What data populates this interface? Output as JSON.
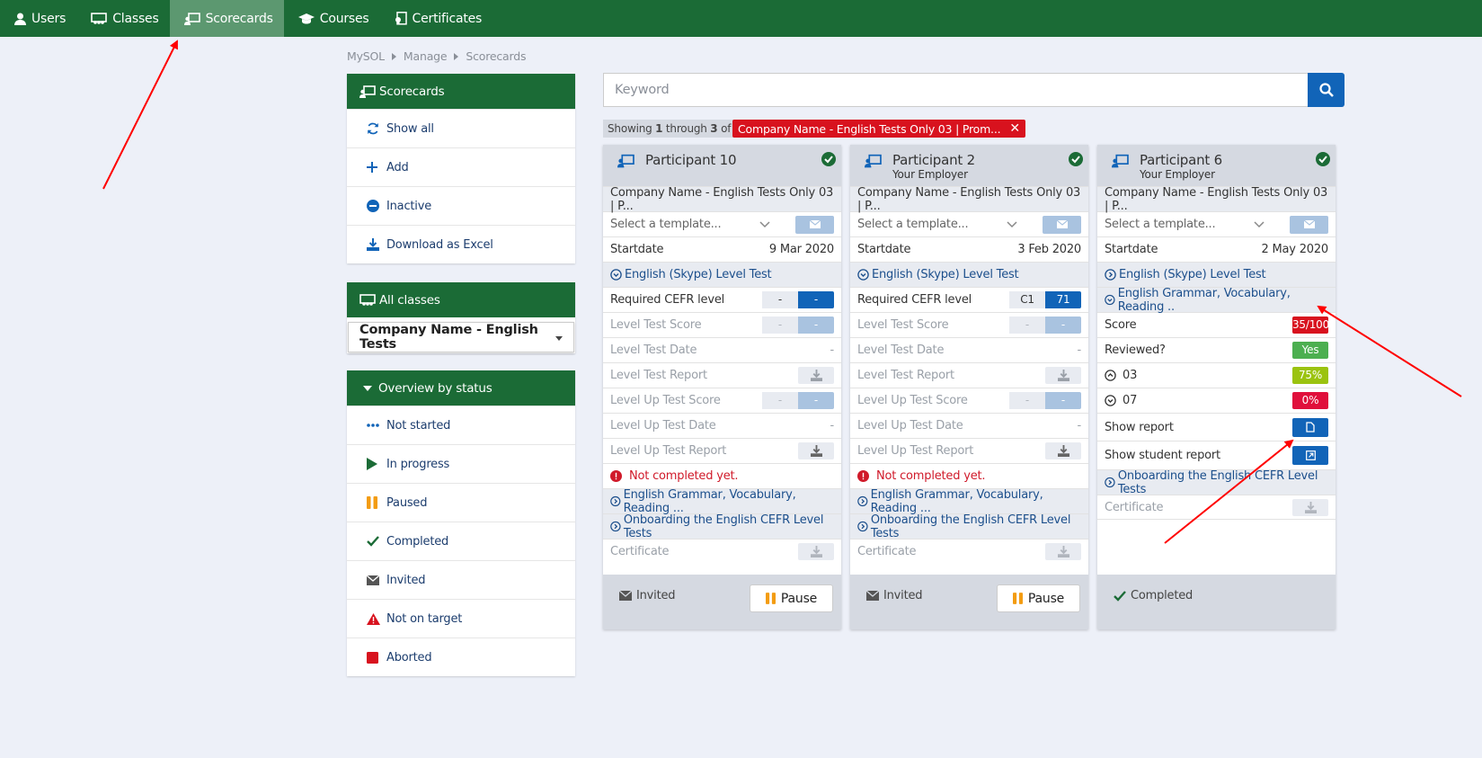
{
  "nav": {
    "items": [
      {
        "label": "Users",
        "icon": "user-icon"
      },
      {
        "label": "Classes",
        "icon": "classes-icon"
      },
      {
        "label": "Scorecards",
        "icon": "scorecards-icon",
        "active": true
      },
      {
        "label": "Courses",
        "icon": "graduation-cap-icon"
      },
      {
        "label": "Certificates",
        "icon": "certificate-icon"
      }
    ]
  },
  "breadcrumb": [
    "MySOL",
    "Manage",
    "Scorecards"
  ],
  "sidebar": {
    "scorecards": {
      "title": "Scorecards",
      "items": [
        {
          "label": "Show all",
          "icon": "refresh-icon"
        },
        {
          "label": "Add",
          "icon": "plus-icon"
        },
        {
          "label": "Inactive",
          "icon": "minus-circle-icon"
        },
        {
          "label": "Download as Excel",
          "icon": "download-icon"
        }
      ]
    },
    "classes": {
      "title": "All classes",
      "selected": "Company Name - English Tests"
    },
    "overview": {
      "title": "Overview by status",
      "items": [
        {
          "label": "Not started",
          "icon": "ellipsis-icon"
        },
        {
          "label": "In progress",
          "icon": "play-icon"
        },
        {
          "label": "Paused",
          "icon": "pause-icon"
        },
        {
          "label": "Completed",
          "icon": "checkmark-icon"
        },
        {
          "label": "Invited",
          "icon": "envelope-icon"
        },
        {
          "label": "Not on target",
          "icon": "warning-icon"
        },
        {
          "label": "Aborted",
          "icon": "stop-icon"
        }
      ]
    }
  },
  "search": {
    "placeholder": "Keyword"
  },
  "results": {
    "showing_prefix": "Showing ",
    "from": "1",
    "through": " through ",
    "to": "3",
    "of": " of ",
    "total": "3",
    "filter": "Company Name - English Tests Only 03 | Prom..."
  },
  "common": {
    "class_name": "Company Name - English Tests Only 03 | P...",
    "template_placeholder": "Select a template...",
    "startdate_label": "Startdate",
    "level_test": "English (Skype) Level Test",
    "grammar_test": "English Grammar, Vocabulary, Reading ...",
    "grammar_test_short": "English Grammar, Vocabulary, Reading ..",
    "onboarding": "Onboarding the English CEFR Level Tests",
    "required_cefr": "Required CEFR level",
    "level_test_score": "Level Test Score",
    "level_test_date": "Level Test Date",
    "level_test_report": "Level Test Report",
    "level_up_score": "Level Up Test Score",
    "level_up_date": "Level Up Test Date",
    "level_up_report": "Level Up Test Report",
    "not_completed": "Not completed yet.",
    "certificate": "Certificate",
    "pause": "Pause",
    "dash": "-",
    "score_label": "Score",
    "reviewed_label": "Reviewed?",
    "show_report": "Show report",
    "show_student_report": "Show student report"
  },
  "cards": [
    {
      "name": "Participant 10",
      "employer": "",
      "startdate": "9 Mar 2020",
      "cefr_a": "-",
      "cefr_b": "-",
      "status": "Invited"
    },
    {
      "name": "Participant 2",
      "employer": "Your Employer",
      "startdate": "3 Feb 2020",
      "cefr_a": "C1",
      "cefr_b": "71",
      "status": "Invited"
    },
    {
      "name": "Participant 6",
      "employer": "Your Employer",
      "startdate": "2 May 2020",
      "score": "35/100",
      "reviewed": "Yes",
      "sub1_label": "03",
      "sub1_value": "75%",
      "sub2_label": "07",
      "sub2_value": "0%",
      "status": "Completed"
    }
  ],
  "colors": {
    "nav_green": "#1b6b36",
    "accent_blue": "#1164b8",
    "danger_red": "#d8121e",
    "yes_green": "#4caf50",
    "lime": "#9bc30f",
    "annotation_arrow": "#ff0000"
  }
}
